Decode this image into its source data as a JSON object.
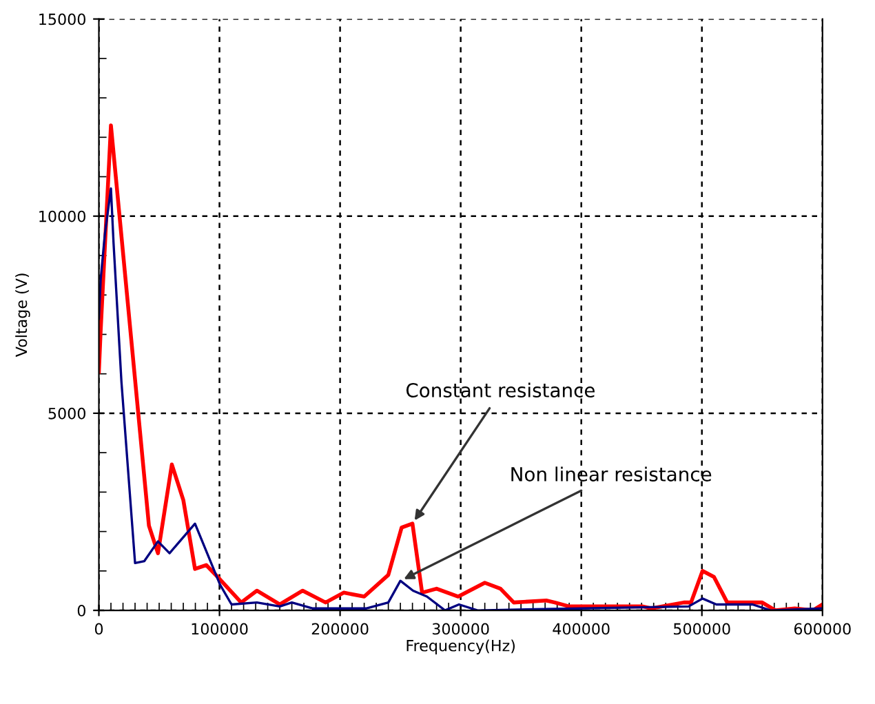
{
  "chart_data": {
    "type": "line",
    "xlabel": "Frequency(Hz)",
    "ylabel": "Voltage (V)",
    "xlim": [
      0,
      600000
    ],
    "xticks": [
      0,
      100000,
      200000,
      300000,
      400000,
      500000,
      600000
    ],
    "ylim": [
      0,
      15000
    ],
    "yticks": [
      0,
      5000,
      10000,
      15000
    ],
    "grid": true,
    "line_style": "solid",
    "series": [
      {
        "color": "#ff0000",
        "x": [
          0,
          1500,
          10000,
          41500,
          49000,
          60500,
          70000,
          79700,
          89000,
          100000,
          118000,
          131000,
          150000,
          169000,
          188000,
          203000,
          220000,
          240000,
          251000,
          260000,
          268000,
          280000,
          298000,
          320000,
          333000,
          344000,
          371000,
          378000,
          390000,
          451000,
          458000,
          485000,
          491000,
          500500,
          510000,
          521000,
          550000,
          561000,
          577000,
          592000,
          600000
        ],
        "values": [
          6050,
          7100,
          12300,
          2150,
          1450,
          3700,
          2800,
          1050,
          1150,
          800,
          200,
          500,
          150,
          500,
          200,
          450,
          350,
          900,
          2100,
          2200,
          450,
          550,
          350,
          700,
          550,
          200,
          250,
          200,
          100,
          100,
          50,
          200,
          200,
          1000,
          850,
          200,
          200,
          0,
          50,
          0,
          150
        ]
      },
      {
        "color": "#000080",
        "x": [
          0,
          1500,
          5000,
          10000,
          12200,
          18700,
          30000,
          37700,
          49000,
          58600,
          79700,
          100500,
          110000,
          131000,
          150000,
          160000,
          177000,
          222000,
          240000,
          250000,
          260500,
          272000,
          287000,
          298600,
          314000,
          489000,
          500500,
          512000,
          542000,
          557000,
          600000
        ],
        "values": [
          7400,
          8400,
          9550,
          10700,
          9300,
          5800,
          1200,
          1250,
          1750,
          1450,
          2200,
          650,
          150,
          200,
          100,
          200,
          50,
          50,
          200,
          750,
          500,
          350,
          0,
          150,
          0,
          100,
          300,
          150,
          150,
          0,
          50
        ]
      }
    ],
    "annotations": [
      {
        "text": "Constant resistance",
        "x": 260000,
        "y": 2200
      },
      {
        "text": "Non linear resistance",
        "x": 250000,
        "y": 750
      }
    ]
  }
}
